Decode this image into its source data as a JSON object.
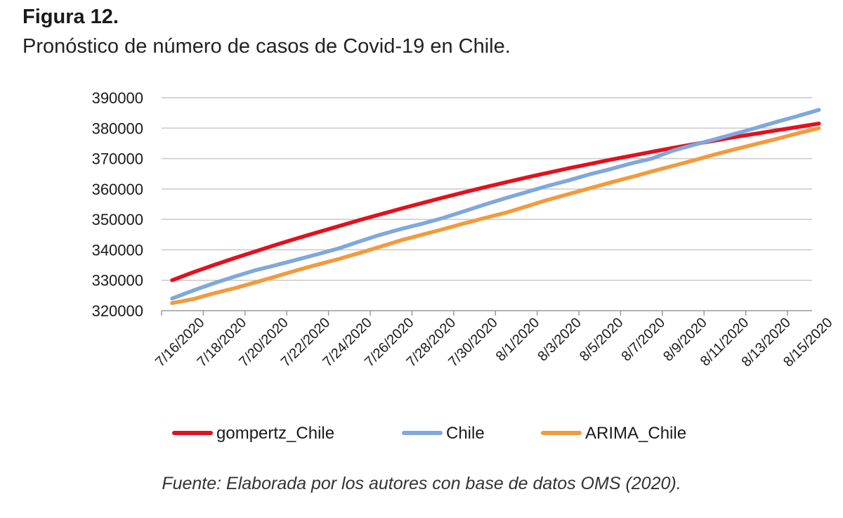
{
  "figure": {
    "label": "Figura 12.",
    "title": "Pronóstico de número de casos de Covid-19 en Chile.",
    "source": "Fuente: Elaborada por los autores con base de datos OMS (2020)."
  },
  "chart_data": {
    "type": "line",
    "ylim": [
      320000,
      390000
    ],
    "yticks": [
      320000,
      330000,
      340000,
      350000,
      360000,
      370000,
      380000,
      390000
    ],
    "ytick_labels": [
      "320000",
      "330000",
      "340000",
      "350000",
      "360000",
      "370000",
      "380000",
      "390000"
    ],
    "x": [
      "7/16/2020",
      "7/17/2020",
      "7/18/2020",
      "7/19/2020",
      "7/20/2020",
      "7/21/2020",
      "7/22/2020",
      "7/23/2020",
      "7/24/2020",
      "7/25/2020",
      "7/26/2020",
      "7/27/2020",
      "7/28/2020",
      "7/29/2020",
      "7/30/2020",
      "7/31/2020",
      "8/1/2020",
      "8/2/2020",
      "8/3/2020",
      "8/4/2020",
      "8/5/2020",
      "8/6/2020",
      "8/7/2020",
      "8/8/2020",
      "8/9/2020",
      "8/10/2020",
      "8/11/2020",
      "8/12/2020",
      "8/13/2020",
      "8/14/2020",
      "8/15/2020",
      "8/16/2020"
    ],
    "xtick_labels": [
      "7/16/2020",
      "7/18/2020",
      "7/20/2020",
      "7/22/2020",
      "7/24/2020",
      "7/26/2020",
      "7/28/2020",
      "7/30/2020",
      "8/1/2020",
      "8/3/2020",
      "8/5/2020",
      "8/7/2020",
      "8/9/2020",
      "8/11/2020",
      "8/13/2020",
      "8/15/2020"
    ],
    "grid": true,
    "legend_position": "bottom",
    "series": [
      {
        "name": "gompertz_Chile",
        "color": "#e3101e",
        "values": [
          330000,
          332600,
          335000,
          337300,
          339500,
          341700,
          343800,
          345800,
          347800,
          349800,
          351700,
          353600,
          355400,
          357200,
          358900,
          360600,
          362200,
          363800,
          365300,
          366800,
          368200,
          369600,
          370900,
          372200,
          373500,
          374700,
          375900,
          377100,
          378200,
          379300,
          380400,
          381500
        ]
      },
      {
        "name": "Chile",
        "color": "#7fa8dc",
        "values": [
          324000,
          326600,
          329000,
          331200,
          333300,
          335000,
          336800,
          338600,
          340500,
          342800,
          345000,
          346900,
          348600,
          350500,
          352700,
          354900,
          357000,
          359000,
          361000,
          362800,
          364800,
          366500,
          368400,
          370000,
          372600,
          374500,
          376300,
          378200,
          380100,
          382100,
          384000,
          386000
        ]
      },
      {
        "name": "ARIMA_Chile",
        "color": "#f39a3d",
        "values": [
          322500,
          323800,
          325700,
          327400,
          329300,
          331300,
          333300,
          335200,
          337000,
          339000,
          341100,
          343200,
          345000,
          346800,
          348700,
          350500,
          352200,
          354300,
          356400,
          358300,
          360200,
          362100,
          363900,
          365800,
          367600,
          369400,
          371300,
          373100,
          374800,
          376500,
          378300,
          380000
        ]
      }
    ]
  }
}
